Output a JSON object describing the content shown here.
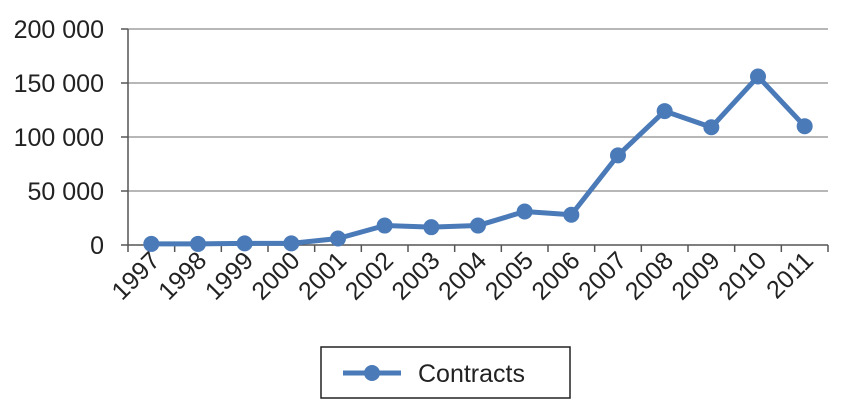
{
  "chart_data": {
    "type": "line",
    "categories": [
      "1997",
      "1998",
      "1999",
      "2000",
      "2001",
      "2002",
      "2003",
      "2004",
      "2005",
      "2006",
      "2007",
      "2008",
      "2009",
      "2010",
      "2011"
    ],
    "series": [
      {
        "name": "Contracts",
        "color": "#4a7ab8",
        "values": [
          1000,
          1000,
          1500,
          1500,
          6000,
          18000,
          16500,
          18000,
          31000,
          28000,
          83000,
          124000,
          109000,
          156000,
          110000
        ]
      }
    ],
    "ylim": [
      0,
      200000
    ],
    "y_ticks": [
      0,
      50000,
      100000,
      150000,
      200000
    ],
    "y_tick_labels": [
      "0",
      "50 000",
      "100 000",
      "150 000",
      "200 000"
    ],
    "grid": "horizontal",
    "legend_position": "bottom",
    "title": "",
    "xlabel": "",
    "ylabel": ""
  }
}
